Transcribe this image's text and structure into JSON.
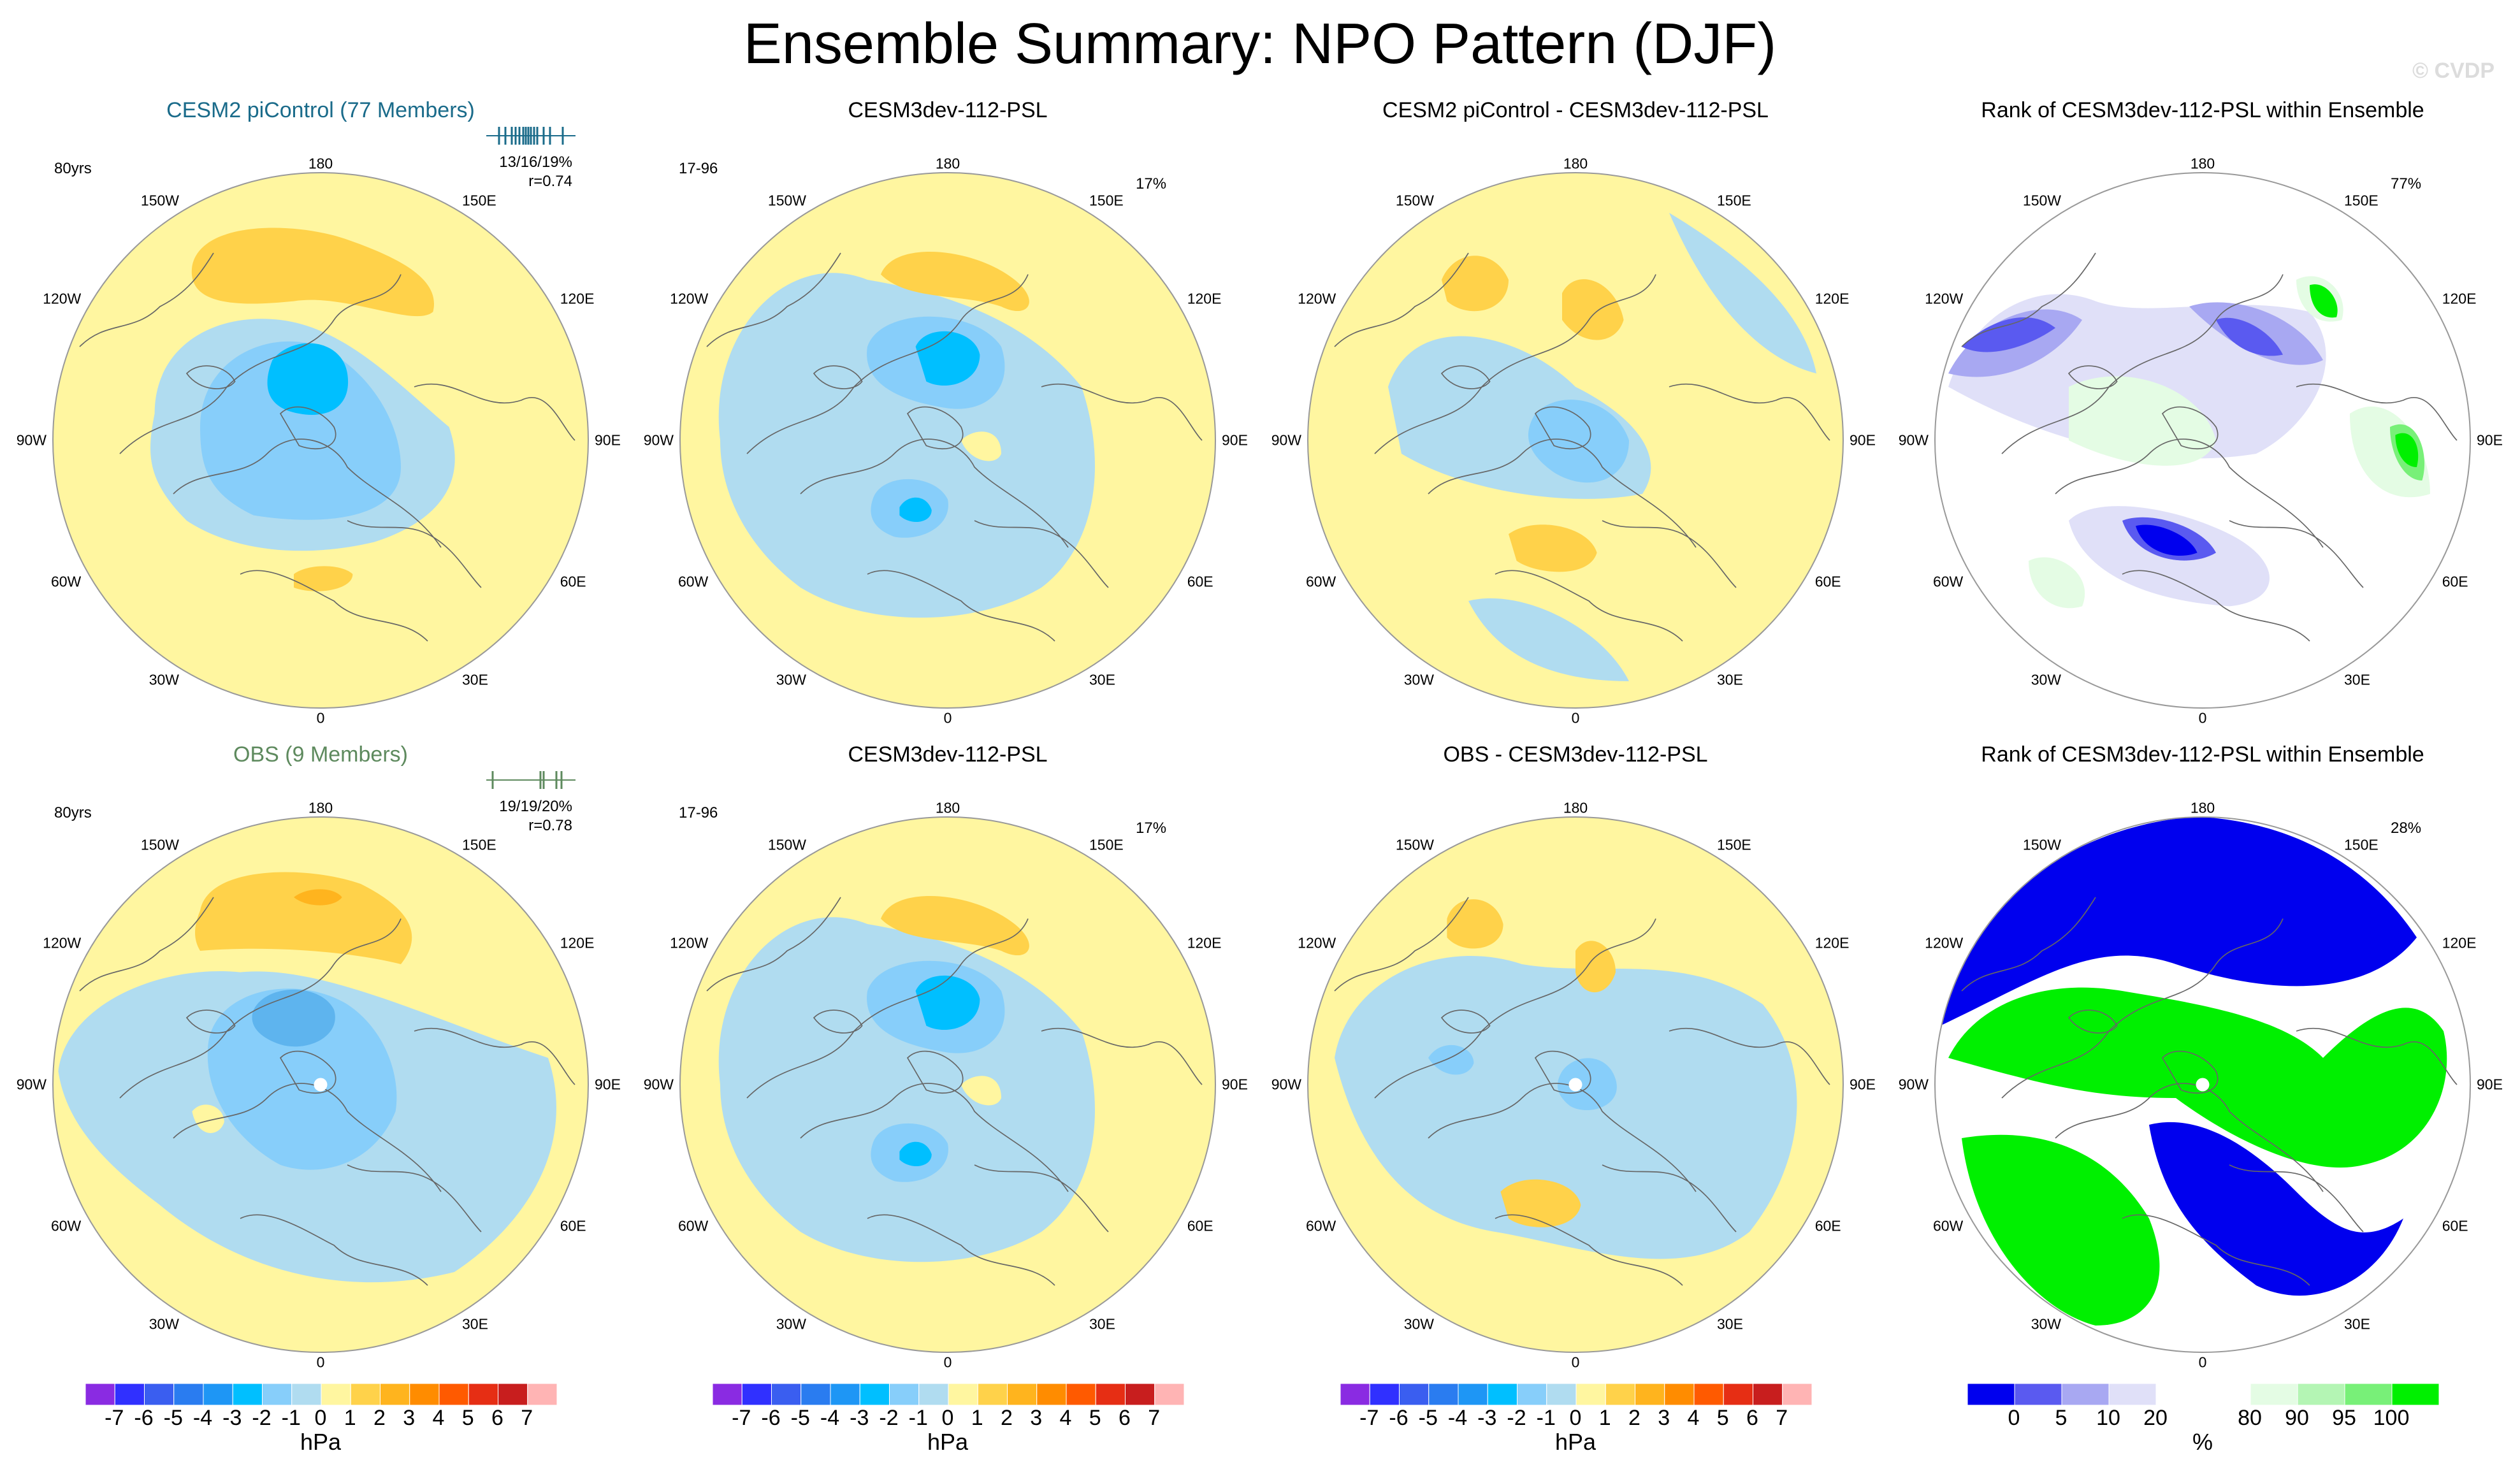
{
  "title": "Ensemble Summary: NPO Pattern (DJF)",
  "copyright": "© CVDP",
  "lon_labels": {
    "top": "180",
    "bottom": "0",
    "left": "90W",
    "right": "90E",
    "ul1": "150W",
    "ul2": "120W",
    "ll1": "60W",
    "ll2": "30W",
    "ur1": "150E",
    "ur2": "120E",
    "lr1": "60E",
    "lr2": "30E"
  },
  "rows": [
    {
      "panels": [
        {
          "title": "CESM2 piControl (77 Members)",
          "title_color": "#1a6b8a",
          "corner_left": "80yrs",
          "corner_right": "",
          "stats": [
            "13/16/19%",
            "r=0.74"
          ],
          "type": "psl",
          "variant": 1
        },
        {
          "title": "CESM3dev-112-PSL",
          "title_color": "#000000",
          "corner_left": "17-96",
          "corner_right": "17%",
          "stats": [],
          "type": "psl",
          "variant": 2
        },
        {
          "title": "CESM2 piControl - CESM3dev-112-PSL",
          "title_color": "#000000",
          "corner_left": "",
          "corner_right": "",
          "stats": [],
          "type": "psl",
          "variant": 3
        },
        {
          "title": "Rank of CESM3dev-112-PSL within Ensemble",
          "title_color": "#000000",
          "corner_left": "",
          "corner_right": "77%",
          "stats": [],
          "type": "rank",
          "variant": 1
        }
      ]
    },
    {
      "panels": [
        {
          "title": "OBS (9 Members)",
          "title_color": "#5e8a5e",
          "corner_left": "80yrs",
          "corner_right": "",
          "stats": [
            "19/19/20%",
            "r=0.78"
          ],
          "type": "psl",
          "variant": 4
        },
        {
          "title": "CESM3dev-112-PSL",
          "title_color": "#000000",
          "corner_left": "17-96",
          "corner_right": "17%",
          "stats": [],
          "type": "psl",
          "variant": 2
        },
        {
          "title": "OBS - CESM3dev-112-PSL",
          "title_color": "#000000",
          "corner_left": "",
          "corner_right": "",
          "stats": [],
          "type": "psl",
          "variant": 5
        },
        {
          "title": "Rank of CESM3dev-112-PSL within Ensemble",
          "title_color": "#000000",
          "corner_left": "",
          "corner_right": "28%",
          "stats": [],
          "type": "rank",
          "variant": 2
        }
      ]
    }
  ],
  "colorbars": [
    {
      "type": "psl",
      "unit": "hPa",
      "colors": [
        "#8a2be2",
        "#3030ff",
        "#3a5ef0",
        "#2a7cf0",
        "#1e96f5",
        "#00bfff",
        "#87cefa",
        "#b0dcf0",
        "#fff6a0",
        "#ffd24a",
        "#ffb41e",
        "#ff8c00",
        "#ff5a00",
        "#e62e14",
        "#c81e1e",
        "#ffb4b4"
      ],
      "ticks": [
        "-7",
        "-6",
        "-5",
        "-4",
        "-3",
        "-2",
        "-1",
        "0",
        "1",
        "2",
        "3",
        "4",
        "5",
        "6",
        "7"
      ]
    },
    {
      "type": "psl",
      "unit": "hPa",
      "colors": [
        "#8a2be2",
        "#3030ff",
        "#3a5ef0",
        "#2a7cf0",
        "#1e96f5",
        "#00bfff",
        "#87cefa",
        "#b0dcf0",
        "#fff6a0",
        "#ffd24a",
        "#ffb41e",
        "#ff8c00",
        "#ff5a00",
        "#e62e14",
        "#c81e1e",
        "#ffb4b4"
      ],
      "ticks": [
        "-7",
        "-6",
        "-5",
        "-4",
        "-3",
        "-2",
        "-1",
        "0",
        "1",
        "2",
        "3",
        "4",
        "5",
        "6",
        "7"
      ]
    },
    {
      "type": "psl",
      "unit": "hPa",
      "colors": [
        "#8a2be2",
        "#3030ff",
        "#3a5ef0",
        "#2a7cf0",
        "#1e96f5",
        "#00bfff",
        "#87cefa",
        "#b0dcf0",
        "#fff6a0",
        "#ffd24a",
        "#ffb41e",
        "#ff8c00",
        "#ff5a00",
        "#e62e14",
        "#c81e1e",
        "#ffb4b4"
      ],
      "ticks": [
        "-7",
        "-6",
        "-5",
        "-4",
        "-3",
        "-2",
        "-1",
        "0",
        "1",
        "2",
        "3",
        "4",
        "5",
        "6",
        "7"
      ]
    },
    {
      "type": "rank",
      "unit": "%",
      "colors": [
        "#0000ee",
        "#5a5af0",
        "#a8a8f2",
        "#e0e0f8",
        "#ffffff",
        "#ffffff",
        "#e4fce4",
        "#b4f5b4",
        "#78f078",
        "#00f000"
      ],
      "ticks": [
        "0",
        "5",
        "10",
        "20",
        "80",
        "90",
        "95",
        "100"
      ]
    }
  ],
  "colors": {
    "neutral_pos": "#fff6a0",
    "pos1": "#ffd24a",
    "pos2": "#ffb41e",
    "neg1": "#b0dcf0",
    "neg2": "#87cefa",
    "neg3": "#5eb4ee",
    "neg4": "#00bfff",
    "neg5": "#1e96f5",
    "rank_blue": "#0000ee",
    "rank_blue2": "#5a5af0",
    "rank_blue3": "#a8a8f2",
    "rank_blue4": "#e0e0f8",
    "rank_green": "#00f000",
    "rank_green2": "#78f078",
    "rank_green3": "#e4fce4"
  }
}
